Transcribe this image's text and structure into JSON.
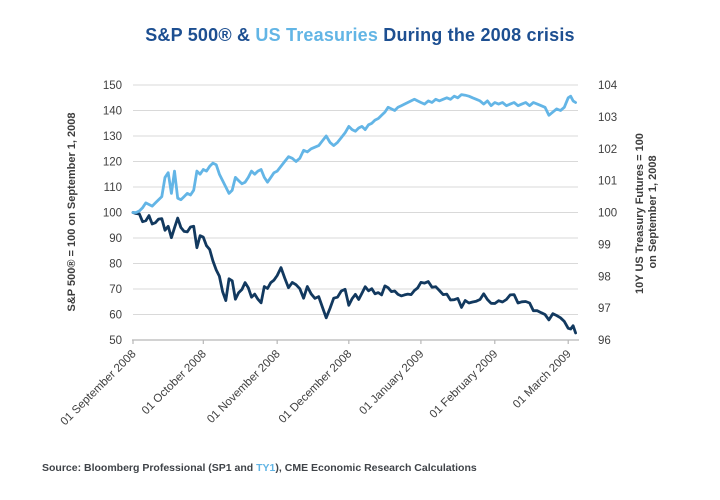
{
  "title": {
    "part1": "S&P 500® & ",
    "part2": "US Treasuries",
    "part3": " During the 2008 crisis"
  },
  "colors": {
    "title_navy": "#1d4f91",
    "title_light_blue": "#62b5e5",
    "sp500_line": "#12395f",
    "treasury_line": "#63b5e6",
    "gridline": "#d9d9d9",
    "axis_line": "#b7b7b7",
    "tick_text": "#404040",
    "source_text": "#3f4348"
  },
  "source": {
    "prefix": "Source: Bloomberg Professional (SP1 and ",
    "highlight": "TY1",
    "suffix": "), CME Economic Research Calculations"
  },
  "chart_data": {
    "type": "line",
    "title": "S&P 500® & US Treasuries During the 2008 crisis",
    "grid": "horizontal",
    "legend": "none",
    "left_axis": {
      "label": "S&P 500® = 100 on September 1, 2008",
      "min": 50,
      "max": 150,
      "tick_step": 10,
      "ticks": [
        150,
        140,
        130,
        120,
        110,
        100,
        90,
        80,
        70,
        60,
        50
      ]
    },
    "right_axis": {
      "label_line1": "10Y US Treasury Futures = 100",
      "label_line2": "on September 1, 2008",
      "min": 96,
      "max": 104,
      "tick_step": 1,
      "ticks": [
        104,
        103,
        102,
        101,
        100,
        99,
        98,
        97,
        96
      ]
    },
    "months": [
      {
        "tick_label": "01 September 2008",
        "tick_frac": 0.0,
        "points": 22
      },
      {
        "tick_label": "01 October 2008",
        "tick_frac": 0.158,
        "points": 23
      },
      {
        "tick_label": "01 November 2008",
        "tick_frac": 0.324,
        "points": 19
      },
      {
        "tick_label": "01 December 2008",
        "tick_frac": 0.485,
        "points": 22
      },
      {
        "tick_label": "01 January 2009",
        "tick_frac": 0.647,
        "points": 20
      },
      {
        "tick_label": "01 February 2009",
        "tick_frac": 0.813,
        "points": 19
      },
      {
        "tick_label": "01 March 2009",
        "tick_frac": 0.978,
        "points": 4
      }
    ],
    "series": [
      {
        "name": "S&P 500 (SP1)",
        "axis": "left",
        "color": "#12395f",
        "values": [
          100,
          99.6,
          99.4,
          96.4,
          96.8,
          98.8,
          95.5,
          96,
          97.4,
          97.6,
          93,
          94.6,
          90.1,
          94,
          97.8,
          94.1,
          92.6,
          92.4,
          94.3,
          94.6,
          86.2,
          90.9,
          90.3,
          87,
          85.5,
          81,
          77.5,
          75,
          69,
          65.5,
          74,
          73.2,
          66,
          68.5,
          69.8,
          72.5,
          70.5,
          66.8,
          68,
          66,
          64.6,
          71,
          70.2,
          72.5,
          73.5,
          75.3,
          78.4,
          74.3,
          70.5,
          72.6,
          71.7,
          70.1,
          66.4,
          71,
          68.1,
          66.3,
          67,
          62.9,
          58.7,
          62.4,
          66.4,
          66.8,
          69.2,
          69.9,
          63.6,
          66.2,
          67.9,
          65.9,
          68.3,
          70.9,
          69.3,
          70.1,
          68.1,
          68.6,
          67.7,
          71.2,
          70.5,
          69,
          69.2,
          67.9,
          67.3,
          67.7,
          68,
          67.8,
          69.4,
          70.4,
          72.6,
          72.3,
          72.9,
          70.7,
          70.9,
          69.4,
          67.8,
          68,
          65.7,
          65.8,
          66.3,
          62.8,
          65.5,
          64.5,
          64.9,
          65.2,
          65.9,
          68.1,
          65.9,
          64.4,
          64.3,
          65.4,
          64.9,
          65.9,
          67.7,
          67.8,
          64.5,
          65,
          65.1,
          64.5,
          61.5,
          61.5,
          60.7,
          60,
          57.9,
          60.3,
          59.6,
          58.7,
          57.3,
          54.6,
          54.3,
          55.6,
          52.8
        ]
      },
      {
        "name": "10Y US Treasury Futures (TY1)",
        "axis": "right",
        "color": "#63b5e6",
        "values": [
          100,
          100,
          100.05,
          100.15,
          100.3,
          100.25,
          100.2,
          100.3,
          100.4,
          100.5,
          101.1,
          101.25,
          100.6,
          101.3,
          100.45,
          100.4,
          100.5,
          100.6,
          100.55,
          100.7,
          101.3,
          101.2,
          101.35,
          101.3,
          101.45,
          101.55,
          101.5,
          101.2,
          101,
          100.8,
          100.6,
          100.7,
          101.1,
          101,
          100.9,
          100.95,
          101.1,
          101.3,
          101.2,
          101.3,
          101.35,
          101.1,
          100.95,
          101.1,
          101.25,
          101.3,
          101.45,
          101.6,
          101.75,
          101.7,
          101.6,
          101.7,
          101.95,
          101.9,
          102,
          102.05,
          102.1,
          102.25,
          102.4,
          102.2,
          102.1,
          102.2,
          102.35,
          102.5,
          102.7,
          102.6,
          102.55,
          102.65,
          102.7,
          102.6,
          102.75,
          102.8,
          102.9,
          102.95,
          103.05,
          103.15,
          103.3,
          103.25,
          103.2,
          103.3,
          103.35,
          103.4,
          103.45,
          103.5,
          103.55,
          103.5,
          103.45,
          103.4,
          103.5,
          103.45,
          103.55,
          103.5,
          103.55,
          103.6,
          103.55,
          103.65,
          103.6,
          103.7,
          103.68,
          103.65,
          103.6,
          103.55,
          103.5,
          103.4,
          103.5,
          103.35,
          103.45,
          103.4,
          103.45,
          103.35,
          103.4,
          103.45,
          103.35,
          103.4,
          103.45,
          103.35,
          103.45,
          103.4,
          103.35,
          103.3,
          103.05,
          103.15,
          103.25,
          103.2,
          103.3,
          103.6,
          103.65,
          103.5,
          103.45
        ]
      }
    ]
  }
}
